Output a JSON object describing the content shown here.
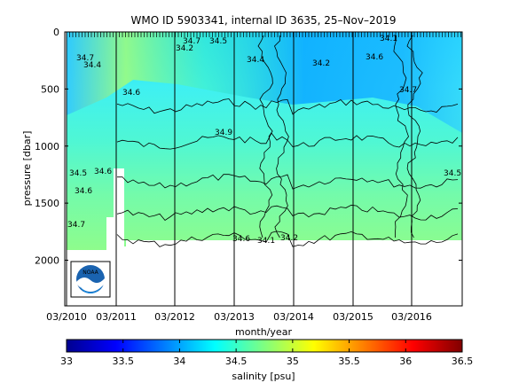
{
  "chart_data": {
    "type": "heatmap",
    "title": "WMO ID 5903341, internal ID 3635, 25–Nov–2019",
    "xlabel": "month/year",
    "ylabel": "pressure [dbar]",
    "x_ticks": [
      "03/2010",
      "03/2011",
      "03/2012",
      "03/2013",
      "03/2014",
      "03/2015",
      "03/2016"
    ],
    "y_ticks": [
      "0",
      "500",
      "1000",
      "1500",
      "2000"
    ],
    "ylim": [
      2400,
      0
    ],
    "y_reversed": true,
    "grid": "vertical lines at x ticks",
    "colorbar": {
      "label": "salinity [psu]",
      "ticks": [
        "33",
        "33.5",
        "34",
        "34.5",
        "35",
        "35.5",
        "36",
        "36.5"
      ],
      "range": [
        33,
        36.5
      ],
      "colormap": "jet"
    },
    "contour_labels": [
      "34.7",
      "34.5",
      "34.2",
      "34.4",
      "34.4",
      "34.5",
      "34.6",
      "34.6",
      "34.7",
      "34.6",
      "34.9",
      "34.1",
      "34.2",
      "34.6",
      "34.7",
      "34.6",
      "34.1",
      "34.2",
      "34.5",
      "34.7"
    ],
    "salinity_profile_psu": [
      {
        "pressure_dbar": 0,
        "salinity_psu": 34.0
      },
      {
        "pressure_dbar": 200,
        "salinity_psu": 34.1
      },
      {
        "pressure_dbar": 500,
        "salinity_psu": 34.3
      },
      {
        "pressure_dbar": 1000,
        "salinity_psu": 34.45
      },
      {
        "pressure_dbar": 1500,
        "salinity_psu": 34.6
      },
      {
        "pressure_dbar": 1830,
        "salinity_psu": 34.7
      }
    ],
    "data_max_pressure_dbar": 1830
  },
  "logo": {
    "text": "NOAA",
    "icon": "noaa-logo-icon"
  },
  "colors": {
    "background": "#ffffff",
    "axes": "#000000",
    "no_data": "#ffffff"
  }
}
